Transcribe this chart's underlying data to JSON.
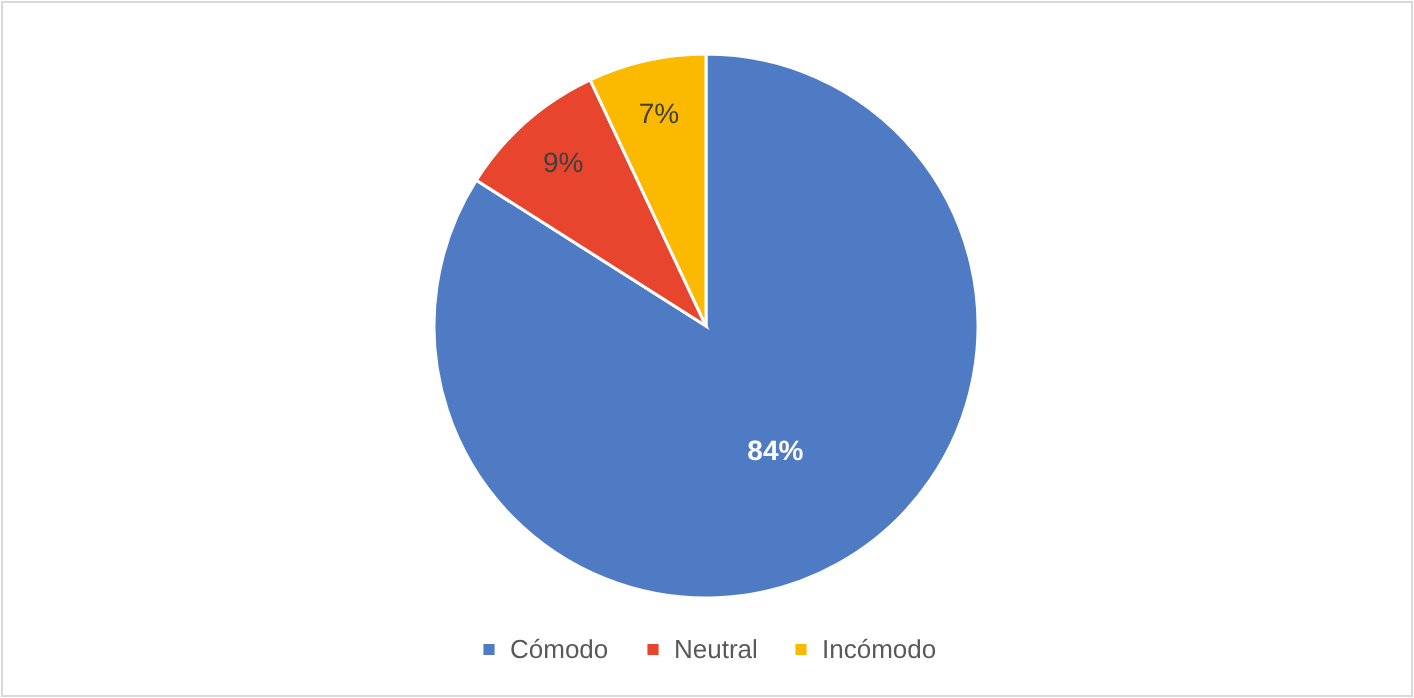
{
  "chart_data": {
    "type": "pie",
    "categories": [
      "Cómodo",
      "Neutral",
      "Incómodo"
    ],
    "values": [
      84,
      9,
      7
    ],
    "colors": [
      "#4f7ac4",
      "#e8452f",
      "#fbb900"
    ],
    "value_labels": [
      "84%",
      "9%",
      "7%"
    ],
    "legend": "bottom"
  }
}
